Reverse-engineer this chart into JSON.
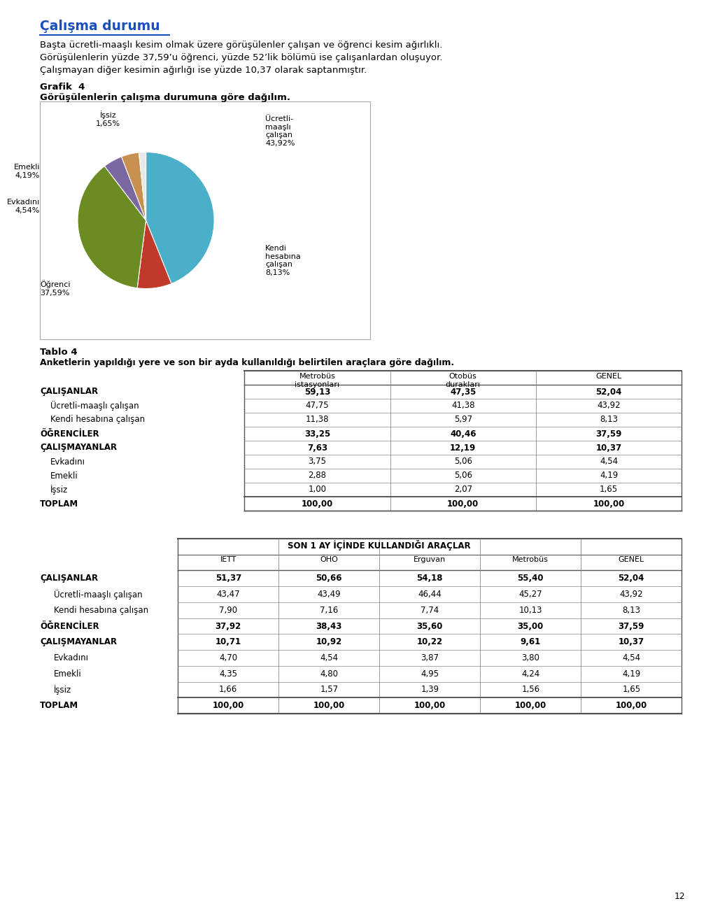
{
  "title_heading": "Çalışma durumu",
  "paragraph_lines": [
    "Başta ücretli-maaşlı kesim olmak üzere görüşülenler çalışan ve öğrenci kesim ağırlıklı.",
    "Görüşülenlerin yüzde 37,59’u öğrenci, yüzde 52’lik bölümü ise çalışanlardan oluşuyor.",
    "Çalışmayan diğer kesimin ağırlığı ise yüzde 10,37 olarak saptanmıştır."
  ],
  "grafik_label": "Grafik  4",
  "grafik_subtitle": "Görüşülenlerin çalışma durumuna göre dağılım.",
  "pie_values": [
    43.92,
    8.13,
    37.59,
    4.54,
    4.19,
    1.65
  ],
  "pie_colors": [
    "#4AAFC9",
    "#C0392B",
    "#6B8C23",
    "#7B68A0",
    "#C89050",
    "#E8E8E8"
  ],
  "pie_label_texts": [
    "Ücretli-\nmaaşlı\nçalışan\n43,92%",
    "Kendi\nhesabına\nçalışan\n8,13%",
    "Öğrenci\n37,59%",
    "Evkadını\n4,54%",
    "Emekli\n4,19%",
    "İşsiz\n1,65%"
  ],
  "tablo4_title": "Tablo 4",
  "tablo4_subtitle": "Anketlerin yapıldığı yere ve son bir ayda kullanıldığı belirtilen araçlara göre dağılım.",
  "tablo4_col_headers": [
    "Metrobüs\nistasyonları",
    "Otobüs\ndurakları",
    "GENEL"
  ],
  "tablo4_rows": [
    [
      "ÇALIŞANLAR",
      "59,13",
      "47,35",
      "52,04",
      true
    ],
    [
      "    Ücretli-maaşlı çalışan",
      "47,75",
      "41,38",
      "43,92",
      false
    ],
    [
      "    Kendi hesabına çalışan",
      "11,38",
      "5,97",
      "8,13",
      false
    ],
    [
      "ÖĞRENCİLER",
      "33,25",
      "40,46",
      "37,59",
      true
    ],
    [
      "ÇALIŞMAYANLAR",
      "7,63",
      "12,19",
      "10,37",
      true
    ],
    [
      "    Evkadını",
      "3,75",
      "5,06",
      "4,54",
      false
    ],
    [
      "    Emekli",
      "2,88",
      "5,06",
      "4,19",
      false
    ],
    [
      "    İşsiz",
      "1,00",
      "2,07",
      "1,65",
      false
    ],
    [
      "TOPLAM",
      "100,00",
      "100,00",
      "100,00",
      true
    ]
  ],
  "tablo5_span_header": "SON 1 AY İÇİNDE KULLANDIĞI ARAÇLAR",
  "tablo5_col_headers": [
    "IETT",
    "ÖHO",
    "Erguvan",
    "Metrobüs",
    "GENEL"
  ],
  "tablo5_rows": [
    [
      "ÇALIŞANLAR",
      "51,37",
      "50,66",
      "54,18",
      "55,40",
      "52,04",
      true
    ],
    [
      "    Ücretli-maaşlı çalışan",
      "43,47",
      "43,49",
      "46,44",
      "45,27",
      "43,92",
      false
    ],
    [
      "    Kendi hesabına çalışan",
      "7,90",
      "7,16",
      "7,74",
      "10,13",
      "8,13",
      false
    ],
    [
      "ÖĞRENCİLER",
      "37,92",
      "38,43",
      "35,60",
      "35,00",
      "37,59",
      true
    ],
    [
      "ÇALIŞMAYANLAR",
      "10,71",
      "10,92",
      "10,22",
      "9,61",
      "10,37",
      true
    ],
    [
      "    Evkadını",
      "4,70",
      "4,54",
      "3,87",
      "3,80",
      "4,54",
      false
    ],
    [
      "    Emekli",
      "4,35",
      "4,80",
      "4,95",
      "4,24",
      "4,19",
      false
    ],
    [
      "    İşsiz",
      "1,66",
      "1,57",
      "1,39",
      "1,56",
      "1,65",
      false
    ],
    [
      "TOPLAM",
      "100,00",
      "100,00",
      "100,00",
      "100,00",
      "100,00",
      true
    ]
  ],
  "page_number": "12",
  "bg": "#FFFFFF"
}
